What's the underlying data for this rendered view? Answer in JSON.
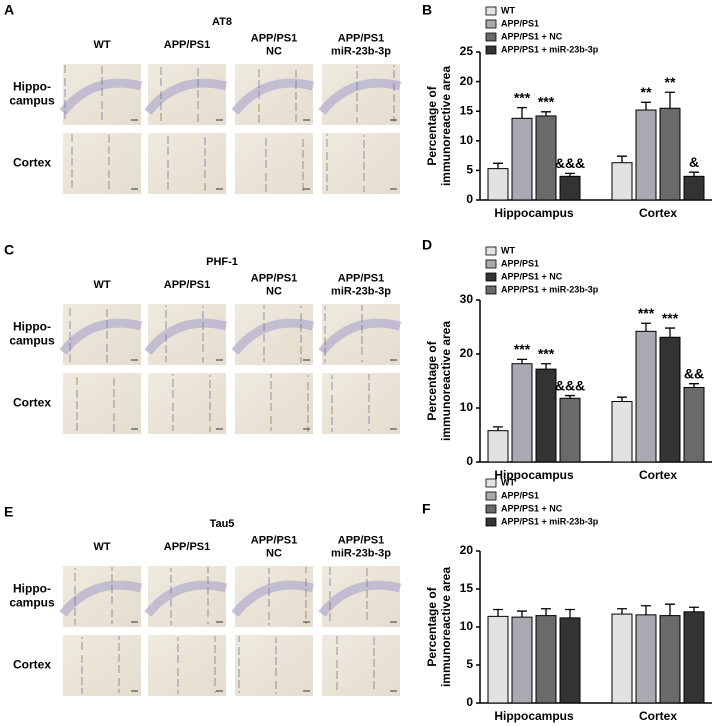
{
  "panels": [
    {
      "label": "A",
      "stain": "AT8",
      "columns": [
        "WT",
        "APP/PS1",
        "APP/PS1\nNC",
        "APP/PS1\nmiR-23b-3p"
      ],
      "rows": [
        "Hippo-\ncampus",
        "Cortex"
      ]
    },
    {
      "label": "C",
      "stain": "PHF-1",
      "columns": [
        "WT",
        "APP/PS1",
        "APP/PS1\nNC",
        "APP/PS1\nmiR-23b-3p"
      ],
      "rows": [
        "Hippo-\ncampus",
        "Cortex"
      ]
    },
    {
      "label": "E",
      "stain": "Tau5",
      "columns": [
        "WT",
        "APP/PS1",
        "APP/PS1\nNC",
        "APP/PS1\nmiR-23b-3p"
      ],
      "rows": [
        "Hippo-\ncampus",
        "Cortex"
      ]
    }
  ],
  "chart_data": [
    {
      "type": "bar",
      "label": "B",
      "y_label": "Percentage of\nimmunoreactive area",
      "categories": [
        "Hippocampus",
        "Cortex"
      ],
      "ylim": [
        0,
        25
      ],
      "yticks": [
        0,
        5,
        10,
        15,
        20,
        25
      ],
      "series": [
        {
          "name": "WT",
          "color": "#e2e2e2",
          "values": [
            5.3,
            6.3
          ],
          "errors": [
            0.9,
            1.1
          ],
          "annotations": [
            null,
            null
          ]
        },
        {
          "name": "APP/PS1",
          "color": "#a9a9b1",
          "values": [
            13.8,
            15.2
          ],
          "errors": [
            1.8,
            1.3
          ],
          "annotations": [
            "***",
            "**"
          ]
        },
        {
          "name": "APP/PS1 + NC",
          "color": "#6a6a6a",
          "values": [
            14.2,
            15.5
          ],
          "errors": [
            0.7,
            2.7
          ],
          "annotations": [
            "***",
            "**"
          ]
        },
        {
          "name": "APP/PS1 + miR-23b-3p",
          "color": "#333333",
          "values": [
            4.0,
            4.0
          ],
          "errors": [
            0.5,
            0.7
          ],
          "annotations": [
            "&&&",
            "&"
          ]
        }
      ]
    },
    {
      "type": "bar",
      "label": "D",
      "y_label": "Percentage of\nimmunoreactive area",
      "categories": [
        "Hippocampus",
        "Cortex"
      ],
      "ylim": [
        0,
        30
      ],
      "yticks": [
        0,
        10,
        20,
        30
      ],
      "series": [
        {
          "name": "WT",
          "color": "#e2e2e2",
          "values": [
            5.8,
            11.2
          ],
          "errors": [
            0.7,
            0.8
          ],
          "annotations": [
            null,
            null
          ]
        },
        {
          "name": "APP/PS1",
          "color": "#a9a9b1",
          "values": [
            18.2,
            24.2
          ],
          "errors": [
            0.8,
            1.5
          ],
          "annotations": [
            "***",
            "***"
          ]
        },
        {
          "name": "APP/PS1 + NC",
          "color": "#333333",
          "values": [
            17.2,
            23.1
          ],
          "errors": [
            1.0,
            1.7
          ],
          "annotations": [
            "***",
            "***"
          ]
        },
        {
          "name": "APP/PS1 + miR-23b-3p",
          "color": "#6a6a6a",
          "values": [
            11.8,
            13.8
          ],
          "errors": [
            0.5,
            0.7
          ],
          "annotations": [
            "&&&",
            "&&"
          ]
        }
      ]
    },
    {
      "type": "bar",
      "label": "F",
      "y_label": "Percentage of\nimmunoreactive area",
      "categories": [
        "Hippocampus",
        "Cortex"
      ],
      "ylim": [
        0,
        20
      ],
      "yticks": [
        0,
        5,
        10,
        15,
        20
      ],
      "series": [
        {
          "name": "WT",
          "color": "#e2e2e2",
          "values": [
            11.4,
            11.7
          ],
          "errors": [
            0.9,
            0.7
          ],
          "annotations": [
            null,
            null
          ]
        },
        {
          "name": "APP/PS1",
          "color": "#a9a9b1",
          "values": [
            11.3,
            11.6
          ],
          "errors": [
            0.8,
            1.2
          ],
          "annotations": [
            null,
            null
          ]
        },
        {
          "name": "APP/PS1 + NC",
          "color": "#6a6a6a",
          "values": [
            11.5,
            11.5
          ],
          "errors": [
            0.9,
            1.5
          ],
          "annotations": [
            null,
            null
          ]
        },
        {
          "name": "APP/PS1 + miR-23b-3p",
          "color": "#333333",
          "values": [
            11.2,
            12.0
          ],
          "errors": [
            1.1,
            0.6
          ],
          "annotations": [
            null,
            null
          ]
        }
      ]
    }
  ]
}
